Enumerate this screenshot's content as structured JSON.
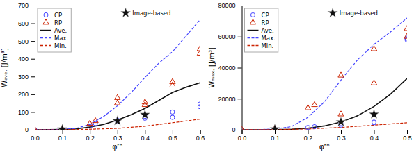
{
  "chart_data": [
    {
      "type": "scatter",
      "xlabel": "φᵗʰ",
      "ylabel": "Wₐᵥₑ. [J/m³]",
      "xlim": [
        0,
        0.6
      ],
      "ylim": [
        0,
        700
      ],
      "xticks": [
        {
          "value": 0,
          "label": "0.0"
        },
        0.1,
        0.2,
        0.3,
        0.4,
        0.5,
        0.6
      ],
      "yticks": [
        0,
        100,
        200,
        300,
        400,
        500,
        600,
        700
      ],
      "grid": false,
      "legend": "upper left",
      "series": [
        {
          "name": "CP",
          "type": "scatter",
          "marker": "circle",
          "color": "#4444ff",
          "x": [
            0.0,
            0.1,
            0.2,
            0.22,
            0.3,
            0.3,
            0.4,
            0.4,
            0.5,
            0.5,
            0.6,
            0.6
          ],
          "values": [
            0.0,
            3,
            20,
            35,
            50,
            55,
            65,
            75,
            70,
            100,
            130,
            145
          ]
        },
        {
          "name": "RP",
          "type": "scatter",
          "marker": "triangle",
          "color": "#cc2200",
          "x": [
            0.0,
            0.1,
            0.2,
            0.22,
            0.3,
            0.3,
            0.4,
            0.4,
            0.5,
            0.5,
            0.6,
            0.6
          ],
          "values": [
            0.0,
            5,
            35,
            50,
            150,
            180,
            140,
            155,
            250,
            270,
            430,
            455
          ]
        },
        {
          "name": "Ave.",
          "type": "line",
          "line_style": "solid",
          "color": "#111111",
          "x": [
            0,
            0.05,
            0.1,
            0.15,
            0.2,
            0.25,
            0.3,
            0.35,
            0.4,
            0.45,
            0.5,
            0.55,
            0.6
          ],
          "values": [
            0,
            0.5,
            2,
            5,
            15,
            30,
            55,
            85,
            120,
            165,
            210,
            240,
            265
          ]
        },
        {
          "name": "Max.",
          "type": "line",
          "line_style": "dashed",
          "color": "#4444ff",
          "x": [
            0,
            0.05,
            0.1,
            0.15,
            0.2,
            0.25,
            0.3,
            0.35,
            0.4,
            0.45,
            0.5,
            0.55,
            0.6
          ],
          "values": [
            0,
            0.5,
            3,
            8,
            30,
            75,
            135,
            210,
            295,
            375,
            440,
            530,
            620
          ]
        },
        {
          "name": "Min.",
          "type": "line",
          "line_style": "dashed",
          "color": "#cc2200",
          "x": [
            0,
            0.1,
            0.2,
            0.3,
            0.4,
            0.5,
            0.6
          ],
          "values": [
            0,
            0,
            3,
            8,
            20,
            40,
            60
          ]
        },
        {
          "name": "Image-based",
          "type": "scatter",
          "marker": "star",
          "color": "#111111",
          "x": [
            0.1,
            0.3,
            0.4
          ],
          "values": [
            3,
            50,
            85
          ]
        }
      ]
    },
    {
      "type": "scatter",
      "xlabel": "φᵗʰ",
      "ylabel": "Wₘₐₓ. [J/m³]",
      "xlim": [
        0,
        0.5
      ],
      "ylim": [
        0,
        80000
      ],
      "xticks": [
        {
          "value": 0,
          "label": "0.0"
        },
        0.1,
        0.2,
        0.3,
        0.4,
        0.5
      ],
      "yticks": [
        0,
        20000,
        40000,
        60000,
        80000
      ],
      "grid": false,
      "legend": "upper left",
      "series": [
        {
          "name": "CP",
          "type": "scatter",
          "marker": "circle",
          "color": "#4444ff",
          "x": [
            0.0,
            0.1,
            0.2,
            0.22,
            0.3,
            0.3,
            0.4,
            0.4,
            0.5,
            0.5
          ],
          "values": [
            0.0,
            500,
            1500,
            2000,
            3000,
            4000,
            4500,
            5000,
            58000,
            59000
          ]
        },
        {
          "name": "RP",
          "type": "scatter",
          "marker": "triangle",
          "color": "#cc2200",
          "x": [
            0.0,
            0.1,
            0.2,
            0.22,
            0.3,
            0.3,
            0.4,
            0.4,
            0.5,
            0.5
          ],
          "values": [
            0.0,
            800,
            14000,
            16000,
            10000,
            35000,
            30000,
            52000,
            60000,
            65000
          ]
        },
        {
          "name": "Ave.",
          "type": "line",
          "line_style": "solid",
          "color": "#111111",
          "x": [
            0,
            0.05,
            0.1,
            0.15,
            0.2,
            0.25,
            0.3,
            0.35,
            0.4,
            0.45,
            0.5
          ],
          "values": [
            0,
            0,
            100,
            300,
            1000,
            2500,
            5000,
            9000,
            15000,
            23000,
            33000
          ]
        },
        {
          "name": "Max.",
          "type": "line",
          "line_style": "dashed",
          "color": "#4444ff",
          "x": [
            0,
            0.05,
            0.1,
            0.15,
            0.2,
            0.25,
            0.3,
            0.35,
            0.4,
            0.45,
            0.5
          ],
          "values": [
            0,
            50,
            500,
            2000,
            8000,
            18000,
            32000,
            45000,
            55000,
            63000,
            72000
          ]
        },
        {
          "name": "Min.",
          "type": "line",
          "line_style": "dashed",
          "color": "#cc2200",
          "x": [
            0,
            0.1,
            0.2,
            0.3,
            0.4,
            0.5
          ],
          "values": [
            0,
            100,
            500,
            1500,
            3000,
            4500
          ]
        },
        {
          "name": "Image-based",
          "type": "scatter",
          "marker": "star",
          "color": "#111111",
          "x": [
            0.1,
            0.3,
            0.4
          ],
          "values": [
            500,
            5000,
            10000
          ]
        }
      ]
    }
  ]
}
